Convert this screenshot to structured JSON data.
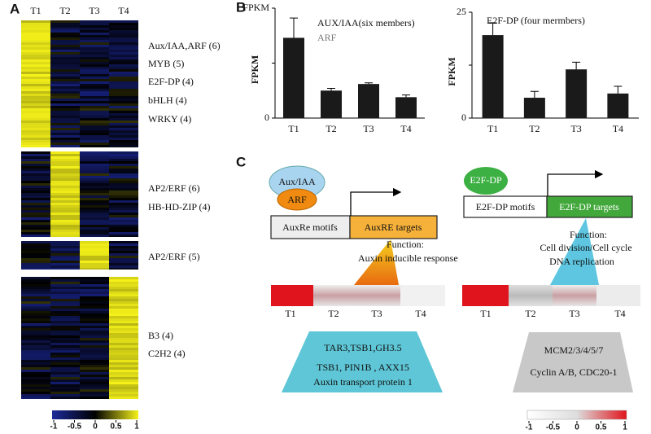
{
  "panel_a": {
    "label": "A",
    "columns": [
      "T1",
      "T2",
      "T3",
      "T4"
    ],
    "gene_groups": [
      [
        "Aux/IAA,ARF (6)",
        "MYB (5)",
        "E2F-DP (4)",
        "bHLH (4)",
        "WRKY (4)"
      ],
      [
        "AP2/ERF (6)",
        "HB-HD-ZIP (4)"
      ],
      [
        "AP2/ERF (5)"
      ],
      [
        "B3 (4)",
        "C2H2 (4)"
      ]
    ],
    "colorbar_ticks": [
      -1,
      -0.5,
      0,
      0.5,
      1
    ]
  },
  "panel_b": {
    "label": "B"
  },
  "chart_data": [
    {
      "type": "bar",
      "title": "AUX/IAA(six members)",
      "subtitle": "ARF",
      "ylabel": "FPKM",
      "categories": [
        "T1",
        "T2",
        "T3",
        "T4"
      ],
      "values": [
        0.73,
        0.25,
        0.31,
        0.19
      ],
      "errors": [
        0.18,
        0.02,
        0.01,
        0.02
      ],
      "color": "#1a1a1a",
      "ylim": [
        0,
        1
      ],
      "yticks": [
        0,
        {
          "value": 1,
          "label": "FPKM"
        }
      ],
      "minor_yticks": [
        0.5
      ]
    },
    {
      "type": "bar",
      "title": "E2F-DP (four mermbers)",
      "ylabel": "FPKM",
      "categories": [
        "T1",
        "T2",
        "T3",
        "T4"
      ],
      "values": [
        19.6,
        4.8,
        11.5,
        5.8
      ],
      "errors": [
        2.9,
        1.5,
        1.7,
        1.7
      ],
      "color": "#1a1a1a",
      "ylim": [
        0,
        25
      ],
      "yticks": [
        0,
        25
      ],
      "minor_yticks": [
        12.5
      ]
    }
  ],
  "panel_c": {
    "label": "C",
    "left": {
      "regulator_top": "Aux/IAA",
      "regulator": "ARF",
      "motif": "AuxRe motifs",
      "target": "AuxRE targets",
      "function_title": "Function:",
      "function": "Auxin  inducible response",
      "columns": [
        "T1",
        "T2",
        "T3",
        "T4"
      ],
      "genes": [
        "TAR3,TSB1,GH3.5",
        "TSB1, PIN1B , AXX15",
        "Auxin transport  protein 1"
      ]
    },
    "right": {
      "regulator": "E2F-DP",
      "motif": "E2F-DP motifs",
      "target": "E2F-DP targets",
      "function_title": "Function:",
      "function": [
        "Cell division/Cell cycle",
        "DNA replication"
      ],
      "columns": [
        "T1",
        "T2",
        "T3",
        "T4"
      ],
      "genes": [
        "MCM2/3/4/5/7",
        "Cyclin A/B, CDC20-1"
      ]
    },
    "colorbar_ticks": [
      -1,
      -0.5,
      0,
      0.5,
      1
    ]
  }
}
